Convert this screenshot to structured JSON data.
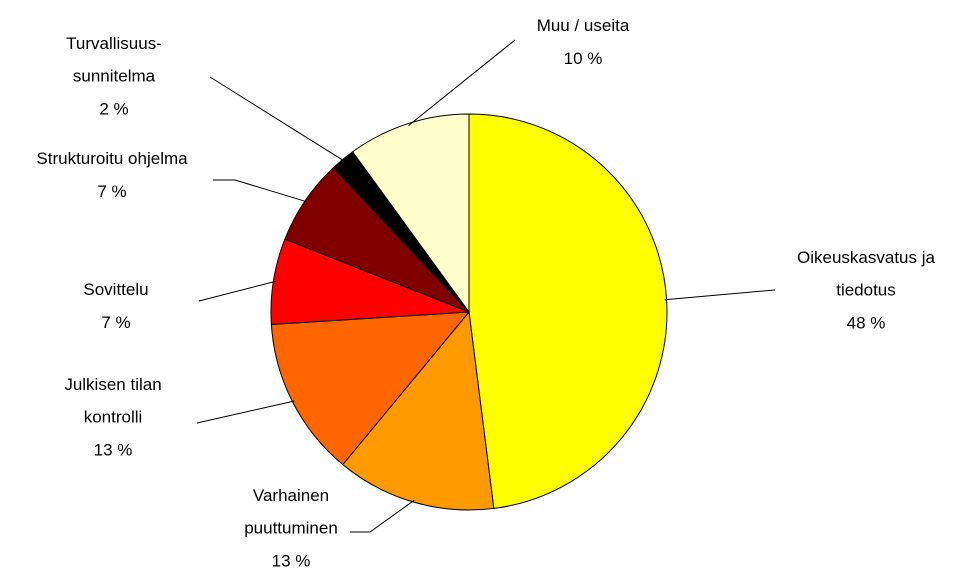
{
  "chart_data": {
    "type": "pie",
    "categories": [
      "Oikeuskasvatus ja\ntiedotus",
      "Varhainen\npuuttuminen",
      "Julkisen tilan\nkontrolli",
      "Sovittelu",
      "Strukturoitu ohjelma",
      "Turvallisuus-\nsunnitelma",
      "Muu / useita"
    ],
    "values": [
      48,
      13,
      13,
      7,
      7,
      2,
      10
    ],
    "value_labels": [
      "48 %",
      "13 %",
      "13 %",
      "7 %",
      "7 %",
      "2 %",
      "10 %"
    ],
    "colors": [
      "#FFFF00",
      "#FF9900",
      "#FF6600",
      "#FF0000",
      "#800000",
      "#000000",
      "#FFFFCC"
    ]
  }
}
